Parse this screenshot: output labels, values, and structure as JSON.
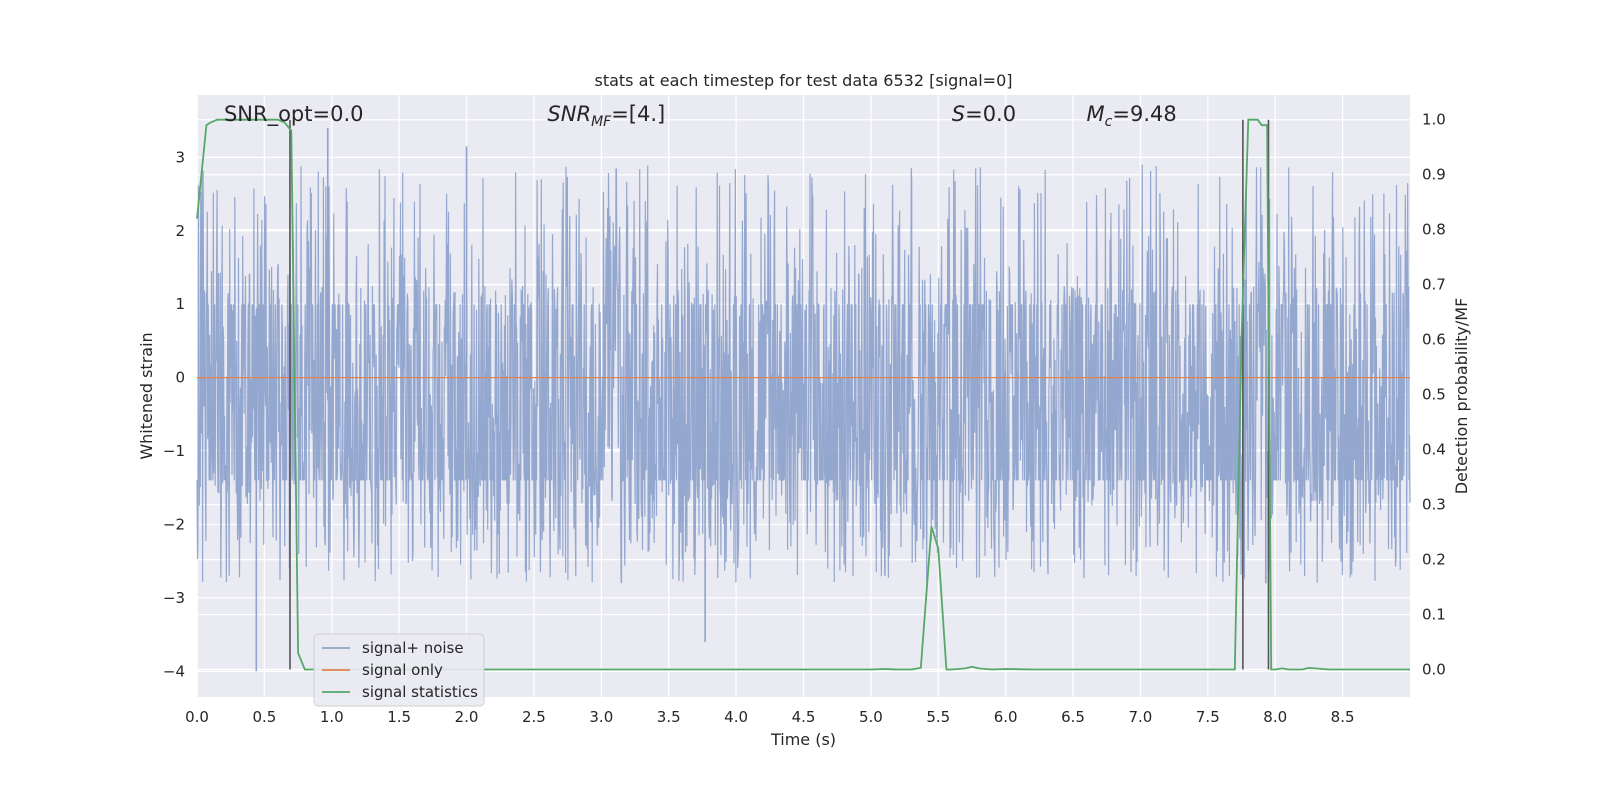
{
  "chart_data": {
    "type": "line",
    "title": "stats at each timestep for test data 6532 [signal=0]",
    "xlabel": "Time (s)",
    "ylabel_left": "Whitened strain",
    "ylabel_right": "Detection probability/MF",
    "xlim": [
      0,
      9.0
    ],
    "ylim_left": [
      -4.35,
      3.85
    ],
    "ylim_right": [
      -0.05,
      1.045
    ],
    "x_ticks": [
      0.0,
      0.5,
      1.0,
      1.5,
      2.0,
      2.5,
      3.0,
      3.5,
      4.0,
      4.5,
      5.0,
      5.5,
      6.0,
      6.5,
      7.0,
      7.5,
      8.0,
      8.5
    ],
    "x_tick_labels": [
      "0.0",
      "0.5",
      "1.0",
      "1.5",
      "2.0",
      "2.5",
      "3.0",
      "3.5",
      "4.0",
      "4.5",
      "5.0",
      "5.5",
      "6.0",
      "6.5",
      "7.0",
      "7.5",
      "8.0",
      "8.5"
    ],
    "y_left_ticks": [
      -4,
      -3,
      -2,
      -1,
      0,
      1,
      2,
      3
    ],
    "y_left_tick_labels": [
      "−4",
      "−3",
      "−2",
      "−1",
      "0",
      "1",
      "2",
      "3"
    ],
    "y_right_ticks": [
      0.0,
      0.1,
      0.2,
      0.3,
      0.4,
      0.5,
      0.6,
      0.7,
      0.8,
      0.9,
      1.0
    ],
    "y_right_tick_labels": [
      "0.0",
      "0.1",
      "0.2",
      "0.3",
      "0.4",
      "0.5",
      "0.6",
      "0.7",
      "0.8",
      "0.9",
      "1.0"
    ],
    "grid": true,
    "legend_position": "lower-left",
    "annotations": [
      {
        "text": "SNR_opt=0.0",
        "x": 0.2
      },
      {
        "text": "SNR_MF=[4.]",
        "x": 2.6
      },
      {
        "text": "S=0.0",
        "x": 5.6
      },
      {
        "text": "M_c=9.48",
        "x": 6.6
      }
    ],
    "series": [
      {
        "name": "signal+ noise",
        "color": "#8fa3cc",
        "axis": "left",
        "kind": "noise",
        "envelope": {
          "core_low": -1.75,
          "core_high": 1.25,
          "spike_low": -4.0,
          "spike_high": 3.5
        },
        "notable_spikes": [
          {
            "x": 0.44,
            "y": -4.0
          },
          {
            "x": 0.97,
            "y": 3.4
          },
          {
            "x": 3.77,
            "y": -3.6
          },
          {
            "x": 2.0,
            "y": 3.15
          },
          {
            "x": 7.93,
            "y": -2.8
          }
        ]
      },
      {
        "name": "signal only",
        "color": "#dd8452",
        "axis": "left",
        "x": [
          0,
          9.0
        ],
        "y": [
          0,
          0
        ]
      },
      {
        "name": "signal statistics",
        "color": "#55a868",
        "axis": "right",
        "x": [
          0.0,
          0.07,
          0.1,
          0.15,
          0.2,
          0.3,
          0.4,
          0.5,
          0.6,
          0.65,
          0.7,
          0.75,
          0.8,
          0.9,
          1.0,
          2.0,
          3.0,
          4.0,
          4.5,
          5.0,
          5.1,
          5.2,
          5.3,
          5.37,
          5.45,
          5.5,
          5.56,
          5.6,
          5.7,
          5.75,
          5.8,
          5.9,
          6.0,
          6.2,
          7.0,
          7.5,
          7.7,
          7.75,
          7.8,
          7.83,
          7.87,
          7.9,
          7.94,
          7.97,
          8.0,
          8.05,
          8.1,
          8.2,
          8.25,
          8.4,
          8.6,
          9.0
        ],
        "y": [
          0.82,
          0.99,
          0.995,
          1.0,
          1.0,
          1.0,
          1.0,
          1.0,
          1.0,
          0.995,
          0.98,
          0.03,
          0.0,
          0.0,
          0.0,
          0.0,
          0.0,
          0.0,
          0.0,
          0.0,
          0.001,
          0.0,
          0.0,
          0.003,
          0.26,
          0.22,
          0.0,
          0.0,
          0.002,
          0.005,
          0.002,
          0.0,
          0.001,
          0.0,
          0.0,
          0.0,
          0.0,
          0.6,
          1.0,
          1.0,
          1.0,
          0.99,
          0.99,
          0.0,
          0.0,
          0.002,
          0.0,
          0.0,
          0.003,
          0.0,
          0.0,
          0.0
        ]
      }
    ],
    "vertical_markers": [
      {
        "x": 0.69,
        "y_top": 1.0,
        "y_bottom": 0.0
      },
      {
        "x": 7.76,
        "y_top": 1.0,
        "y_bottom": 0.0
      },
      {
        "x": 7.95,
        "y_top": 1.0,
        "y_bottom": 0.0
      }
    ],
    "colors": {
      "background": "#eaeaf2",
      "grid": "#ffffff",
      "marker": "#555555"
    }
  }
}
